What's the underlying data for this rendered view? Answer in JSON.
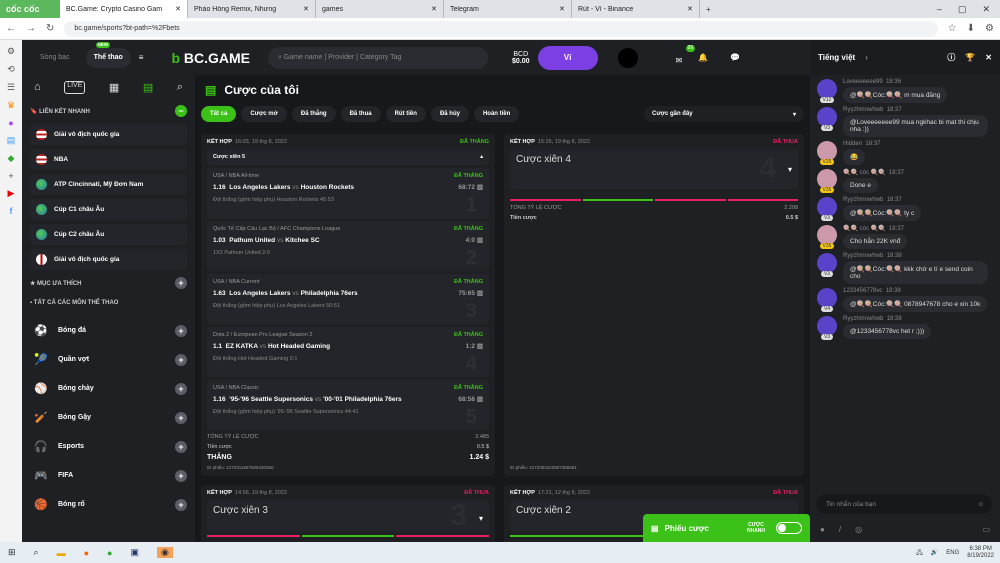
{
  "browser": {
    "logo": "cốc cốc",
    "tabs": [
      {
        "title": "BC.Game: Crypto Casino Gam",
        "active": true
      },
      {
        "title": "Pháo Hồng Remix, Nhưng"
      },
      {
        "title": "games"
      },
      {
        "title": "Telegram"
      },
      {
        "title": "Rút - Ví - Binance"
      }
    ],
    "url": "bc.game/sports?bt-path=%2Fbets"
  },
  "header": {
    "casino": "Sòng bạc",
    "sports": "Thể thao",
    "new_badge": "NEW",
    "brand": "BC.GAME",
    "search_placeholder": "Game name | Provider | Category Tag",
    "currency": "BCD",
    "balance": "$0.00",
    "wallet": "Ví",
    "notif_count": "99"
  },
  "sidebar": {
    "quick_links_title": "LIÊN KẾT NHANH",
    "quick_links": [
      {
        "label": "Giải vô địch quốc gia",
        "flag": "us"
      },
      {
        "label": "NBA",
        "flag": "us"
      },
      {
        "label": "ATP Cincinnati, Mỹ Đơn Nam",
        "flag": "world"
      },
      {
        "label": "Cúp C1 châu Âu",
        "flag": "world"
      },
      {
        "label": "Cúp C2 châu Âu",
        "flag": "world"
      },
      {
        "label": "Giải vô địch quốc gia",
        "flag": "england"
      }
    ],
    "favorites_title": "MỤC ƯA THÍCH",
    "all_sports_title": "TẤT CẢ CÁC MÔN THỂ THAO",
    "sports": [
      {
        "label": "Bóng đá",
        "icon": "⚽"
      },
      {
        "label": "Quần vợt",
        "icon": "🎾"
      },
      {
        "label": "Bóng chày",
        "icon": "⚾"
      },
      {
        "label": "Bóng Gậy",
        "icon": "🏏"
      },
      {
        "label": "Esports",
        "icon": "🎧"
      },
      {
        "label": "FIFA",
        "icon": "🎮"
      },
      {
        "label": "Bóng rổ",
        "icon": "🏀"
      }
    ]
  },
  "main": {
    "title": "Cược của tôi",
    "filters": [
      "Tất cả",
      "Cược mở",
      "Đã thắng",
      "Đã thua",
      "Rút tiền",
      "Đã hủy",
      "Hoàn tiền"
    ],
    "sort": "Cược gần đây",
    "card1": {
      "type": "KẾT HỢP",
      "date": "16:03, 19 thg 8, 2022",
      "status": "ĐÃ THẮNG",
      "sub": "Cược xiên 5",
      "legs": [
        {
          "league": "USA / NBA All-time",
          "odds": "1.16",
          "home": "Los Angeles Lakers",
          "away": "Houston Rockets",
          "score": "68:72",
          "market": "Đội thắng (gồm hiệp phụ) Houston Rockets  45:53",
          "status": "ĐÃ THẮNG",
          "n": "1"
        },
        {
          "league": "Quốc Tế Cấp Câu Lạc Bộ / AFC Champions League",
          "odds": "1.03",
          "home": "Pathum United",
          "away": "Kitchee SC",
          "score": "4:0",
          "market": "1X2 Pathum United  2:0",
          "status": "ĐÃ THẮNG",
          "n": "2"
        },
        {
          "league": "USA / NBA Current",
          "odds": "1.63",
          "home": "Los Angeles Lakers",
          "away": "Philadelphia 76ers",
          "score": "75:65",
          "market": "Đội thắng (gồm hiệp phụ) Los Angeles Lakers  50:51",
          "status": "ĐÃ THẮNG",
          "n": "3"
        },
        {
          "league": "Dota 2 / European Pro League Season 2",
          "odds": "1.1",
          "home": "EZ KATKA",
          "away": "Hot Headed Gaming",
          "score": "1:2",
          "market": "Đội thắng Hot Headed Gaming  0:1",
          "status": "ĐÃ THẮNG",
          "n": "4"
        },
        {
          "league": "USA / NBA Classic",
          "odds": "1.16",
          "home": "'95-'96 Seattle Supersonics",
          "away": "'00-'01 Philadelphia 76ers",
          "score": "68:56",
          "market": "Đội thắng (gồm hiệp phụ) '95-'96 Seattle Supersonics  44:41",
          "status": "ĐÃ THẮNG",
          "n": "5"
        }
      ],
      "total_odds_label": "TỔNG TỶ LỆ CƯỢC",
      "total_odds": "2.485",
      "stake_label": "Tiền cược",
      "stake": "0.5 $",
      "win_label": "THẮNG",
      "win": "1.24 $",
      "id": "ID phiếu: 2172311857605430360"
    },
    "card2": {
      "type": "KẾT HỢP",
      "date": "15:26, 19 thg 8, 2022",
      "status": "ĐÃ THUA",
      "sub": "Cược xiên 4",
      "n": "4",
      "legs_result": [
        "lose",
        "win",
        "lose",
        "lose"
      ],
      "total_odds_label": "TỔNG TỶ LỆ CƯỢC",
      "total_odds": "2.208",
      "stake_label": "Tiền cược",
      "stake": "0.5 $",
      "id": "ID phiếu: 2172303422907355681"
    },
    "card3": {
      "type": "KẾT HỢP",
      "date": "14:56, 19 thg 8, 2022",
      "status": "ĐÃ THUA",
      "sub": "Cược xiên 3",
      "n": "3",
      "legs_result": [
        "lose",
        "win",
        "lose"
      ]
    },
    "card4": {
      "type": "KẾT HỢP",
      "date": "17:21, 12 thg 8, 2022",
      "status": "ĐÃ THUA",
      "sub": "Cược xiên 2",
      "n": "2",
      "legs_result": [
        "win",
        "lose"
      ]
    }
  },
  "betslip": {
    "label": "Phiếu cược",
    "quick": "CƯỢC NHANH"
  },
  "chat": {
    "language": "Tiếng việt",
    "placeholder": "Tin nhắn của bạn",
    "messages": [
      {
        "user": "Loveeeeeee99",
        "time": "18:36",
        "level": "V12",
        "text": "@🍭🍭Cóc:🍭🍭 m mua đăng"
      },
      {
        "user": "Ryyzhmnwhwb",
        "time": "18:37",
        "level": "V3",
        "text": "@Loveeeeeee99 mua ngkhac bi mat thi chịu nha :))"
      },
      {
        "user": "Hidden",
        "time": "18:37",
        "level": "V25",
        "text": "😂",
        "gold": true
      },
      {
        "user": "🍭🍭 cóc 🍭🍭",
        "time": "18:37",
        "level": "V35",
        "text": "Done e",
        "gold": true
      },
      {
        "user": "Ryyzhmnwhwb",
        "time": "18:37",
        "level": "V3",
        "text": "@🍭🍭Cóc:🍭🍭 ty c"
      },
      {
        "user": "🍭🍭 cóc 🍭🍭",
        "time": "18:37",
        "level": "V35",
        "text": "Cho hắn 22K vnđ",
        "gold": true
      },
      {
        "user": "Ryyzhmnwhwb",
        "time": "18:38",
        "level": "V3",
        "text": "@🍭🍭Cóc:🍭🍭 kkk chờ e tí e send coin cho"
      },
      {
        "user": "1233456778vc",
        "time": "18:38",
        "level": "V4",
        "text": "@🍭🍭Cóc:🍭🍭 0878947678 cho e xin 10k"
      },
      {
        "user": "Ryyzhmnwhwb",
        "time": "18:38",
        "level": "V3",
        "text": "@1233456778vc het r ;)))"
      }
    ]
  },
  "taskbar": {
    "lang": "ENG",
    "time": "6:38 PM",
    "date": "8/19/2022"
  },
  "colors": {
    "accent": "#3bc117",
    "lose": "#e91e63",
    "wallet": "#7b3fe4",
    "bg": "#17181b",
    "panel": "#1e2024"
  }
}
